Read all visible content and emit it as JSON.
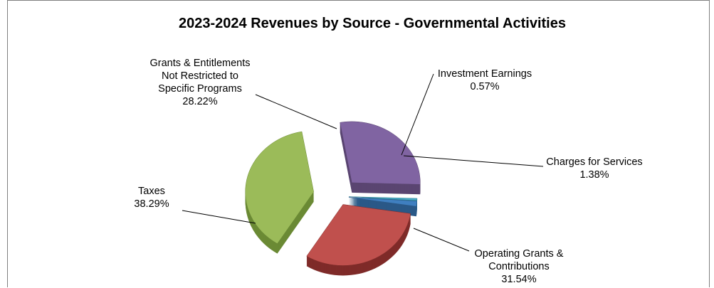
{
  "chart_data": {
    "type": "pie",
    "title": "2023-2024 Revenues by Source - Governmental Activities",
    "slices": [
      {
        "label_lines": [
          "Grants & Entitlements",
          "Not Restricted to",
          "Specific Programs"
        ],
        "value": 28.22,
        "value_text": "28.22%",
        "color": "#8064a2",
        "side_color": "#5a4571"
      },
      {
        "label_lines": [
          "Investment Earnings"
        ],
        "value": 0.57,
        "value_text": "0.57%",
        "color": "#4bacc6",
        "side_color": "#2f7b90"
      },
      {
        "label_lines": [
          "Charges for Services"
        ],
        "value": 1.38,
        "value_text": "1.38%",
        "color": "#3f7fc0",
        "side_color": "#2a5887"
      },
      {
        "label_lines": [
          "Operating Grants &",
          "Contributions"
        ],
        "value": 31.54,
        "value_text": "31.54%",
        "color": "#c0504d",
        "side_color": "#7f2b29"
      },
      {
        "label_lines": [
          "Taxes"
        ],
        "value": 38.29,
        "value_text": "38.29%",
        "color": "#9bbb59",
        "side_color": "#6b8a35"
      }
    ]
  }
}
